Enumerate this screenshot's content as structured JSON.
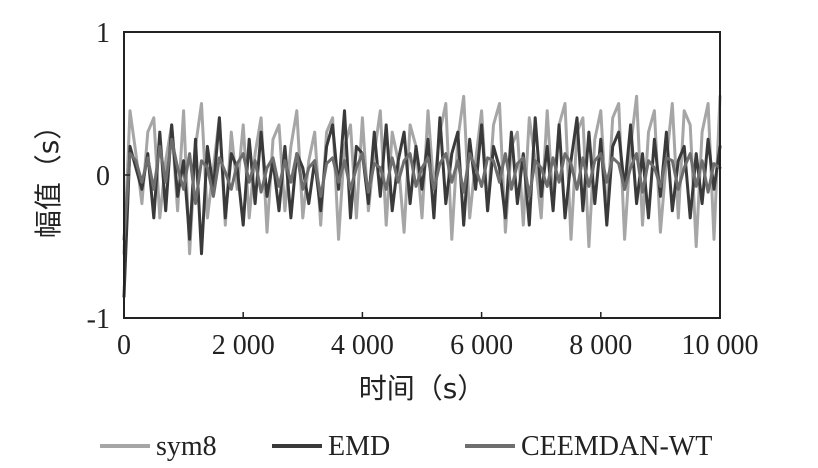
{
  "chart_data": {
    "type": "line",
    "title": "",
    "xlabel": "时间（s）",
    "ylabel": "幅值（s）",
    "xlim": [
      0,
      10000
    ],
    "ylim": [
      -1,
      1
    ],
    "xticks": [
      0,
      2000,
      4000,
      6000,
      8000,
      10000
    ],
    "xtick_labels": [
      "0",
      "2 000",
      "4 000",
      "6 000",
      "8 000",
      "10 000"
    ],
    "yticks": [
      -1,
      0,
      1
    ],
    "ytick_labels": [
      "-1",
      "0",
      "1"
    ],
    "grid": false,
    "legend_position": "bottom",
    "x": [
      0,
      100,
      200,
      300,
      400,
      500,
      600,
      700,
      800,
      900,
      1000,
      1100,
      1200,
      1300,
      1400,
      1500,
      1600,
      1700,
      1800,
      1900,
      2000,
      2100,
      2200,
      2300,
      2400,
      2500,
      2600,
      2700,
      2800,
      2900,
      3000,
      3100,
      3200,
      3300,
      3400,
      3500,
      3600,
      3700,
      3800,
      3900,
      4000,
      4100,
      4200,
      4300,
      4400,
      4500,
      4600,
      4700,
      4800,
      4900,
      5000,
      5100,
      5200,
      5300,
      5400,
      5500,
      5600,
      5700,
      5800,
      5900,
      6000,
      6100,
      6200,
      6300,
      6400,
      6500,
      6600,
      6700,
      6800,
      6900,
      7000,
      7100,
      7200,
      7300,
      7400,
      7500,
      7600,
      7700,
      7800,
      7900,
      8000,
      8100,
      8200,
      8300,
      8400,
      8500,
      8600,
      8700,
      8800,
      8900,
      9000,
      9100,
      9200,
      9300,
      9400,
      9500,
      9600,
      9700,
      9800,
      9900,
      10000
    ],
    "series": [
      {
        "name": "sym8",
        "color": "#a6a6a6",
        "values": [
          -0.55,
          0.45,
          0.15,
          -0.2,
          0.3,
          0.4,
          -0.3,
          0.1,
          0.35,
          -0.25,
          0.45,
          -0.55,
          0.2,
          0.5,
          -0.3,
          0.05,
          0.4,
          -0.35,
          0.3,
          -0.1,
          0.35,
          -0.3,
          0.15,
          0.4,
          -0.4,
          0.25,
          0.35,
          -0.25,
          0.2,
          0.45,
          -0.3,
          0.1,
          0.3,
          -0.35,
          0.3,
          0.4,
          -0.45,
          0.2,
          0.35,
          -0.3,
          0.4,
          -0.25,
          0.15,
          0.45,
          -0.35,
          0.3,
          0.1,
          -0.4,
          0.35,
          0.2,
          -0.3,
          0.45,
          -0.1,
          0.3,
          0.5,
          -0.45,
          0.25,
          0.55,
          -0.3,
          0.1,
          0.45,
          -0.25,
          0.35,
          0.5,
          -0.4,
          0.2,
          0.3,
          -0.35,
          0.4,
          0.1,
          -0.3,
          0.45,
          -0.2,
          0.35,
          0.5,
          -0.45,
          0.3,
          0.4,
          -0.5,
          0.25,
          0.45,
          -0.3,
          0.4,
          0.5,
          -0.45,
          0.2,
          0.55,
          -0.35,
          0.3,
          0.45,
          -0.4,
          0.1,
          0.5,
          -0.3,
          0.45,
          0.35,
          -0.5,
          0.3,
          0.5,
          -0.45,
          0.55
        ]
      },
      {
        "name": "EMD",
        "color": "#3a3a3a",
        "values": [
          -0.85,
          0.2,
          0.05,
          -0.1,
          0.15,
          -0.3,
          0.3,
          -0.25,
          0.35,
          -0.15,
          0.1,
          -0.45,
          0.25,
          -0.55,
          0.2,
          -0.1,
          0.4,
          -0.3,
          0.15,
          0.05,
          -0.35,
          0.25,
          -0.2,
          0.3,
          -0.15,
          0.1,
          -0.25,
          0.2,
          -0.3,
          0.15,
          0.05,
          -0.2,
          0.1,
          -0.25,
          0.2,
          0.35,
          -0.1,
          0.45,
          -0.3,
          0.2,
          0.15,
          -0.2,
          0.3,
          -0.15,
          0.35,
          -0.25,
          0.1,
          0.3,
          -0.2,
          0.2,
          -0.1,
          0.25,
          -0.3,
          0.4,
          -0.2,
          0.15,
          0.3,
          -0.35,
          0.25,
          -0.1,
          0.35,
          -0.25,
          0.2,
          0.05,
          -0.3,
          0.3,
          -0.2,
          0.15,
          -0.35,
          0.4,
          -0.15,
          0.2,
          -0.25,
          0.35,
          -0.3,
          0.1,
          0.4,
          -0.25,
          0.3,
          -0.2,
          0.25,
          -0.35,
          0.2,
          0.3,
          -0.1,
          0.35,
          -0.2,
          0.15,
          -0.3,
          0.25,
          -0.15,
          0.3,
          -0.25,
          0.1,
          0.2,
          -0.3,
          0.15,
          -0.2,
          0.25,
          -0.1,
          0.2
        ]
      },
      {
        "name": "CEEMDAN-WT",
        "color": "#6e6e6e",
        "values": [
          -0.45,
          0.15,
          0.1,
          -0.05,
          0.12,
          -0.1,
          0.2,
          -0.05,
          0.25,
          0.05,
          -0.1,
          0.15,
          -0.2,
          0.1,
          0.05,
          -0.15,
          0.12,
          0.02,
          -0.1,
          0.08,
          0.15,
          -0.05,
          0.1,
          -0.12,
          0.05,
          0.12,
          -0.08,
          0.1,
          -0.05,
          0.15,
          -0.1,
          0.05,
          0.1,
          -0.15,
          0.08,
          0.12,
          -0.05,
          0.1,
          -0.1,
          0.05,
          0.15,
          -0.12,
          0.08,
          0.05,
          -0.1,
          0.12,
          -0.05,
          0.1,
          0.15,
          -0.08,
          0.05,
          0.12,
          -0.1,
          0.08,
          0.15,
          -0.05,
          0.1,
          -0.12,
          0.15,
          0.05,
          -0.08,
          0.12,
          0.1,
          -0.05,
          0.15,
          -0.1,
          0.08,
          0.12,
          -0.15,
          0.1,
          0.05,
          -0.08,
          0.12,
          -0.05,
          0.15,
          0.08,
          -0.1,
          0.12,
          -0.08,
          0.1,
          0.15,
          -0.05,
          0.12,
          0.08,
          -0.1,
          0.05,
          0.15,
          -0.12,
          0.1,
          0.05,
          -0.08,
          0.12,
          0.1,
          -0.1,
          0.05,
          0.15,
          -0.08,
          0.1,
          -0.12,
          0.08,
          0.05
        ]
      }
    ]
  }
}
